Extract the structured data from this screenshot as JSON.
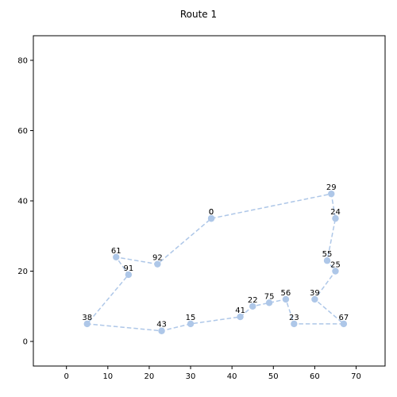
{
  "chart_data": {
    "type": "scatter",
    "title": "Route 1",
    "xlabel": "",
    "ylabel": "",
    "xlim": [
      -8,
      77
    ],
    "ylim": [
      -7,
      87
    ],
    "xticks": [
      0,
      10,
      20,
      30,
      40,
      50,
      60,
      70
    ],
    "yticks": [
      0,
      20,
      40,
      60,
      80
    ],
    "grid": false,
    "color": "#aec7e8",
    "route": [
      {
        "label": "0",
        "x": 35,
        "y": 35
      },
      {
        "label": "29",
        "x": 64,
        "y": 42
      },
      {
        "label": "24",
        "x": 65,
        "y": 35
      },
      {
        "label": "55",
        "x": 63,
        "y": 23
      },
      {
        "label": "25",
        "x": 65,
        "y": 20
      },
      {
        "label": "39",
        "x": 60,
        "y": 12
      },
      {
        "label": "67",
        "x": 67,
        "y": 5
      },
      {
        "label": "23",
        "x": 55,
        "y": 5
      },
      {
        "label": "56",
        "x": 53,
        "y": 12
      },
      {
        "label": "75",
        "x": 49,
        "y": 11
      },
      {
        "label": "22",
        "x": 45,
        "y": 10
      },
      {
        "label": "41",
        "x": 42,
        "y": 7
      },
      {
        "label": "15",
        "x": 30,
        "y": 5
      },
      {
        "label": "43",
        "x": 23,
        "y": 3
      },
      {
        "label": "38",
        "x": 5,
        "y": 5
      },
      {
        "label": "91",
        "x": 15,
        "y": 19
      },
      {
        "label": "61",
        "x": 12,
        "y": 24
      },
      {
        "label": "92",
        "x": 22,
        "y": 22
      },
      {
        "label": "0",
        "x": 35,
        "y": 35
      }
    ]
  }
}
